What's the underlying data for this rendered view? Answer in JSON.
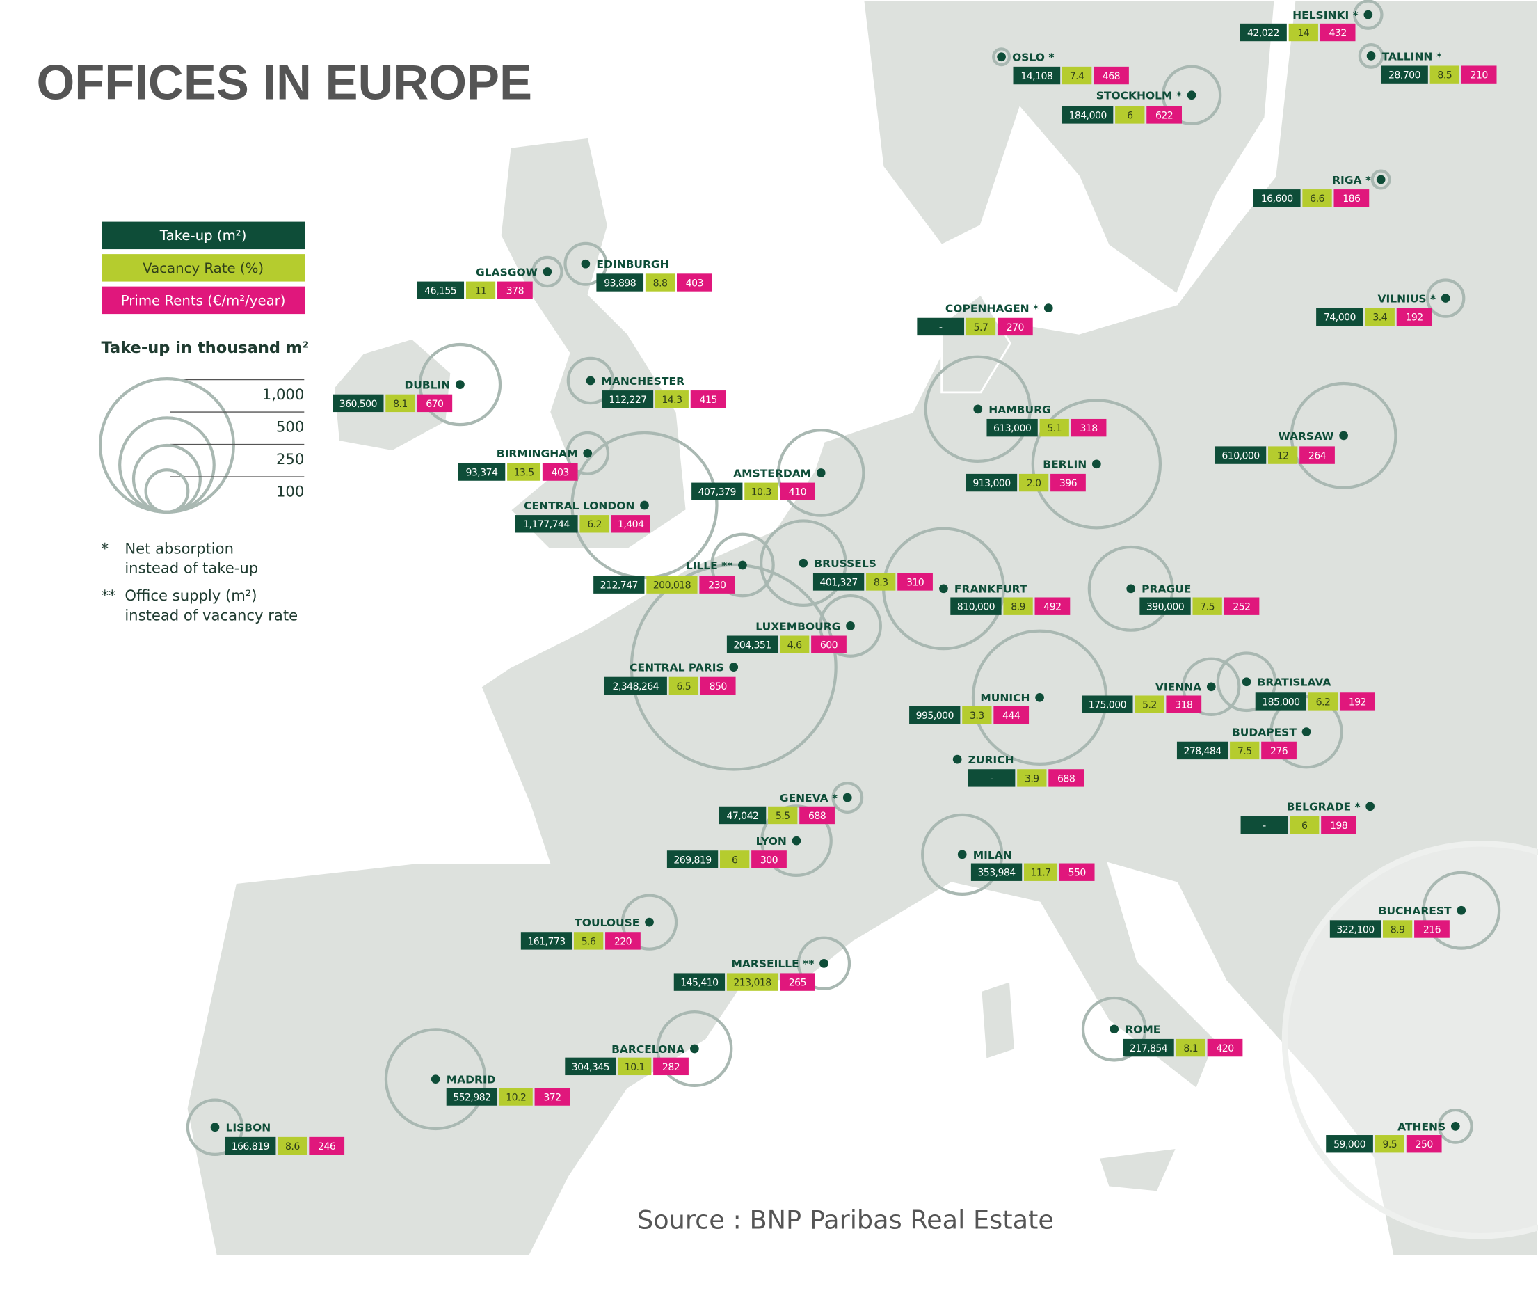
{
  "title": "OFFICES IN EUROPE",
  "legend": {
    "items": [
      "Take-up (m²)",
      "Vacancy Rate (%)",
      "Prime Rents (€/m²/year)"
    ],
    "scale_title": "Take-up in thousand m²",
    "scale_values": [
      "1,000",
      "500",
      "250",
      "100"
    ],
    "notes": [
      {
        "mark": "*",
        "lines": [
          "Net absorption",
          "instead of take-up"
        ]
      },
      {
        "mark": "**",
        "lines": [
          "Office supply (m²)",
          "instead of vacancy rate"
        ]
      }
    ]
  },
  "cities": [
    {
      "name": "HELSINKI *",
      "takeup": "42,022",
      "vacancy": "14",
      "rent": "432"
    },
    {
      "name": "OSLO *",
      "takeup": "14,108",
      "vacancy": "7.4",
      "rent": "468"
    },
    {
      "name": "TALLINN *",
      "takeup": "28,700",
      "vacancy": "8.5",
      "rent": "210"
    },
    {
      "name": "STOCKHOLM *",
      "takeup": "184,000",
      "vacancy": "6",
      "rent": "622"
    },
    {
      "name": "RIGA *",
      "takeup": "16,600",
      "vacancy": "6.6",
      "rent": "186"
    },
    {
      "name": "GLASGOW",
      "takeup": "46,155",
      "vacancy": "11",
      "rent": "378"
    },
    {
      "name": "EDINBURGH",
      "takeup": "93,898",
      "vacancy": "8.8",
      "rent": "403"
    },
    {
      "name": "COPENHAGEN *",
      "takeup": "-",
      "vacancy": "5.7",
      "rent": "270"
    },
    {
      "name": "VILNIUS *",
      "takeup": "74,000",
      "vacancy": "3.4",
      "rent": "192"
    },
    {
      "name": "DUBLIN",
      "takeup": "360,500",
      "vacancy": "8.1",
      "rent": "670"
    },
    {
      "name": "MANCHESTER",
      "takeup": "112,227",
      "vacancy": "14.3",
      "rent": "415"
    },
    {
      "name": "HAMBURG",
      "takeup": "613,000",
      "vacancy": "5.1",
      "rent": "318"
    },
    {
      "name": "WARSAW",
      "takeup": "610,000",
      "vacancy": "12",
      "rent": "264"
    },
    {
      "name": "BIRMINGHAM",
      "takeup": "93,374",
      "vacancy": "13.5",
      "rent": "403"
    },
    {
      "name": "BERLIN",
      "takeup": "913,000",
      "vacancy": "2.0",
      "rent": "396"
    },
    {
      "name": "AMSTERDAM",
      "takeup": "407,379",
      "vacancy": "10.3",
      "rent": "410"
    },
    {
      "name": "CENTRAL LONDON",
      "takeup": "1,177,744",
      "vacancy": "6.2",
      "rent": "1,404"
    },
    {
      "name": "LILLE **",
      "takeup": "212,747",
      "vacancy": "200,018",
      "rent": "230"
    },
    {
      "name": "BRUSSELS",
      "takeup": "401,327",
      "vacancy": "8.3",
      "rent": "310"
    },
    {
      "name": "FRANKFURT",
      "takeup": "810,000",
      "vacancy": "8.9",
      "rent": "492"
    },
    {
      "name": "PRAGUE",
      "takeup": "390,000",
      "vacancy": "7.5",
      "rent": "252"
    },
    {
      "name": "LUXEMBOURG",
      "takeup": "204,351",
      "vacancy": "4.6",
      "rent": "600"
    },
    {
      "name": "CENTRAL PARIS",
      "takeup": "2,348,264",
      "vacancy": "6.5",
      "rent": "850"
    },
    {
      "name": "MUNICH",
      "takeup": "995,000",
      "vacancy": "3.3",
      "rent": "444"
    },
    {
      "name": "VIENNA",
      "takeup": "175,000",
      "vacancy": "5.2",
      "rent": "318"
    },
    {
      "name": "BRATISLAVA",
      "takeup": "185,000",
      "vacancy": "6.2",
      "rent": "192"
    },
    {
      "name": "BUDAPEST",
      "takeup": "278,484",
      "vacancy": "7.5",
      "rent": "276"
    },
    {
      "name": "ZURICH",
      "takeup": "-",
      "vacancy": "3.9",
      "rent": "688"
    },
    {
      "name": "GENEVA *",
      "takeup": "47,042",
      "vacancy": "5.5",
      "rent": "688"
    },
    {
      "name": "BELGRADE *",
      "takeup": "-",
      "vacancy": "6",
      "rent": "198"
    },
    {
      "name": "LYON",
      "takeup": "269,819",
      "vacancy": "6",
      "rent": "300"
    },
    {
      "name": "MILAN",
      "takeup": "353,984",
      "vacancy": "11.7",
      "rent": "550"
    },
    {
      "name": "BUCHAREST",
      "takeup": "322,100",
      "vacancy": "8.9",
      "rent": "216"
    },
    {
      "name": "TOULOUSE",
      "takeup": "161,773",
      "vacancy": "5.6",
      "rent": "220"
    },
    {
      "name": "MARSEILLE **",
      "takeup": "145,410",
      "vacancy": "213,018",
      "rent": "265"
    },
    {
      "name": "ROME",
      "takeup": "217,854",
      "vacancy": "8.1",
      "rent": "420"
    },
    {
      "name": "BARCELONA",
      "takeup": "304,345",
      "vacancy": "10.1",
      "rent": "282"
    },
    {
      "name": "MADRID",
      "takeup": "552,982",
      "vacancy": "10.2",
      "rent": "372"
    },
    {
      "name": "LISBON",
      "takeup": "166,819",
      "vacancy": "8.6",
      "rent": "246"
    },
    {
      "name": "ATHENS",
      "takeup": "59,000",
      "vacancy": "9.5",
      "rent": "250"
    }
  ],
  "source": "Source : BNP Paribas Real Estate"
}
